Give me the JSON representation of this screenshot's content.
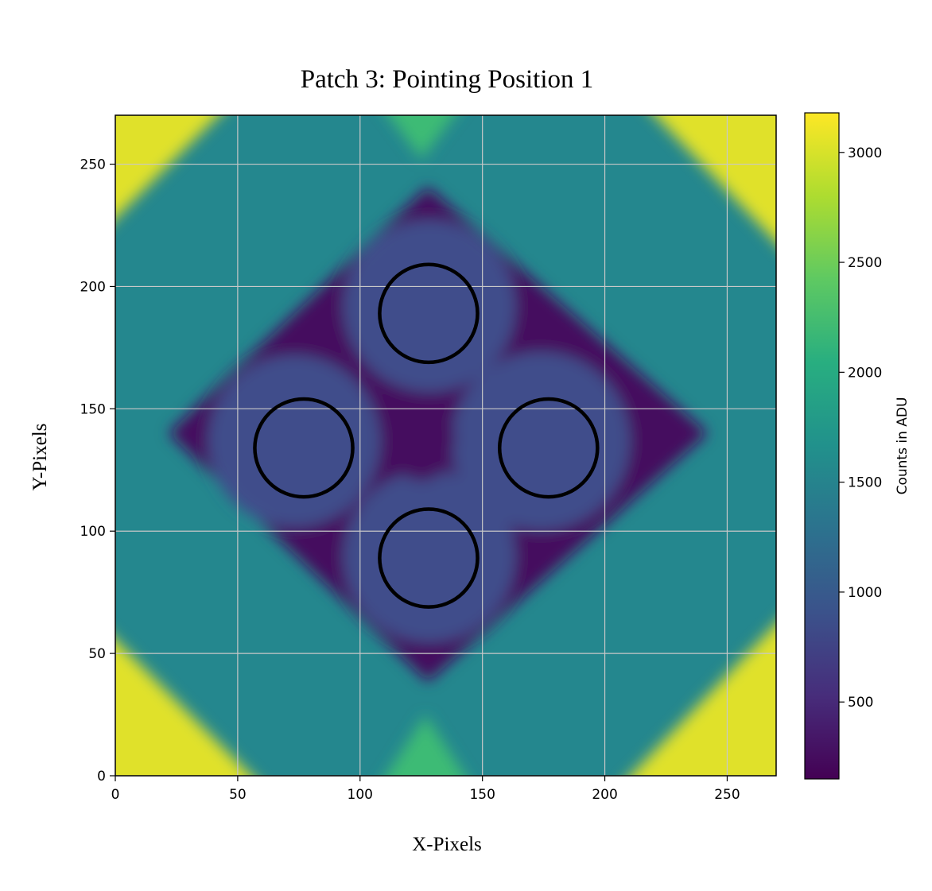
{
  "chart_data": {
    "type": "heatmap",
    "title": "Patch 3: Pointing Position 1",
    "xlabel": "X-Pixels",
    "ylabel": "Y-Pixels",
    "xlim": [
      0,
      270
    ],
    "ylim": [
      0,
      270
    ],
    "xticks": [
      0,
      50,
      100,
      150,
      200,
      250
    ],
    "yticks": [
      0,
      50,
      100,
      150,
      200,
      250
    ],
    "grid": true,
    "colormap": "viridis",
    "colorbar": {
      "label": "Counts in ADU",
      "range": [
        150,
        3180
      ],
      "ticks": [
        500,
        1000,
        1500,
        2000,
        2500,
        3000
      ]
    },
    "circles": [
      {
        "x": 128,
        "y": 189,
        "r": 20
      },
      {
        "x": 77,
        "y": 134,
        "r": 20
      },
      {
        "x": 177,
        "y": 134,
        "r": 20
      },
      {
        "x": 128,
        "y": 89,
        "r": 20
      }
    ]
  }
}
